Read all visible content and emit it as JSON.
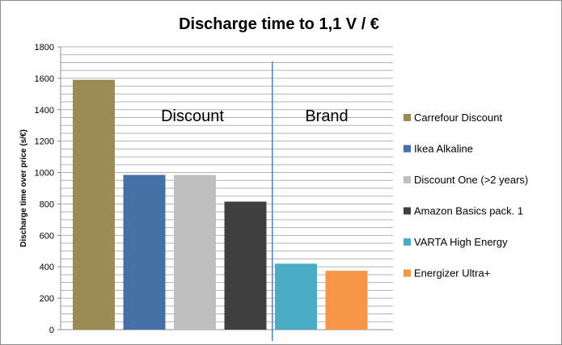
{
  "chart_data": {
    "type": "bar",
    "title": "Discharge time to 1,1 V / €",
    "ylabel": "Discharge time over price (s/€)",
    "xlabel": "",
    "ylim": [
      0,
      1800
    ],
    "yticks": [
      0,
      200,
      400,
      600,
      800,
      1000,
      1200,
      1400,
      1600,
      1800
    ],
    "grid": true,
    "legend_position": "right",
    "series": [
      {
        "name": "Carrefour Discount",
        "value": 1590,
        "color": "#9b8b55"
      },
      {
        "name": "Ikea Alkaline",
        "value": 985,
        "color": "#4472a8"
      },
      {
        "name": "Discount One (>2 years)",
        "value": 985,
        "color": "#bfbfbf"
      },
      {
        "name": "Amazon Basics pack. 1",
        "value": 815,
        "color": "#404040"
      },
      {
        "name": "VARTA High Energy",
        "value": 420,
        "color": "#4bacc6"
      },
      {
        "name": "Energizer Ultra+",
        "value": 375,
        "color": "#f79646"
      }
    ],
    "group_labels": [
      "Discount",
      "Brand"
    ],
    "divider_color": "#4f81bd",
    "grid_color": "#b3b3b3"
  }
}
